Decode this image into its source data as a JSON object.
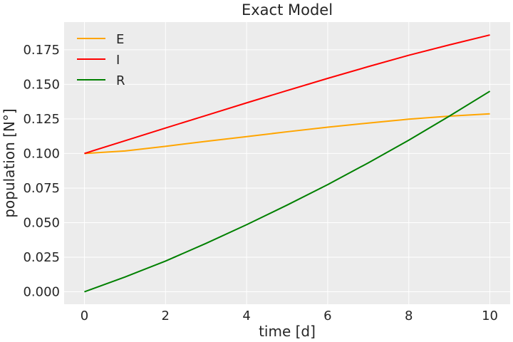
{
  "chart_data": {
    "type": "line",
    "title": "Exact Model",
    "xlabel": "time [d]",
    "ylabel": "population [N°]",
    "xlim": [
      -0.5,
      10.5
    ],
    "ylim": [
      -0.009,
      0.195
    ],
    "xticks": [
      0,
      2,
      4,
      6,
      8,
      10
    ],
    "yticks": [
      0.0,
      0.025,
      0.05,
      0.075,
      0.1,
      0.125,
      0.15,
      0.175
    ],
    "xtick_labels": [
      "0",
      "2",
      "4",
      "6",
      "8",
      "10"
    ],
    "ytick_labels": [
      "0.000",
      "0.025",
      "0.050",
      "0.075",
      "0.100",
      "0.125",
      "0.150",
      "0.175"
    ],
    "grid": true,
    "legend_position": "top-left",
    "background": "#ececec",
    "x": [
      0,
      1,
      2,
      3,
      4,
      5,
      6,
      7,
      8,
      9,
      10
    ],
    "series": [
      {
        "name": "E",
        "color": "#ffa500",
        "values": [
          0.1,
          0.1018,
          0.1052,
          0.1088,
          0.1122,
          0.1157,
          0.119,
          0.122,
          0.1248,
          0.127,
          0.1287
        ]
      },
      {
        "name": "I",
        "color": "#ff0000",
        "values": [
          0.1,
          0.1092,
          0.1184,
          0.1275,
          0.1366,
          0.1455,
          0.1543,
          0.1628,
          0.171,
          0.1785,
          0.1857
        ]
      },
      {
        "name": "R",
        "color": "#008000",
        "values": [
          0.0,
          0.0107,
          0.0222,
          0.035,
          0.0485,
          0.0627,
          0.0775,
          0.0932,
          0.1096,
          0.127,
          0.145
        ]
      }
    ]
  }
}
